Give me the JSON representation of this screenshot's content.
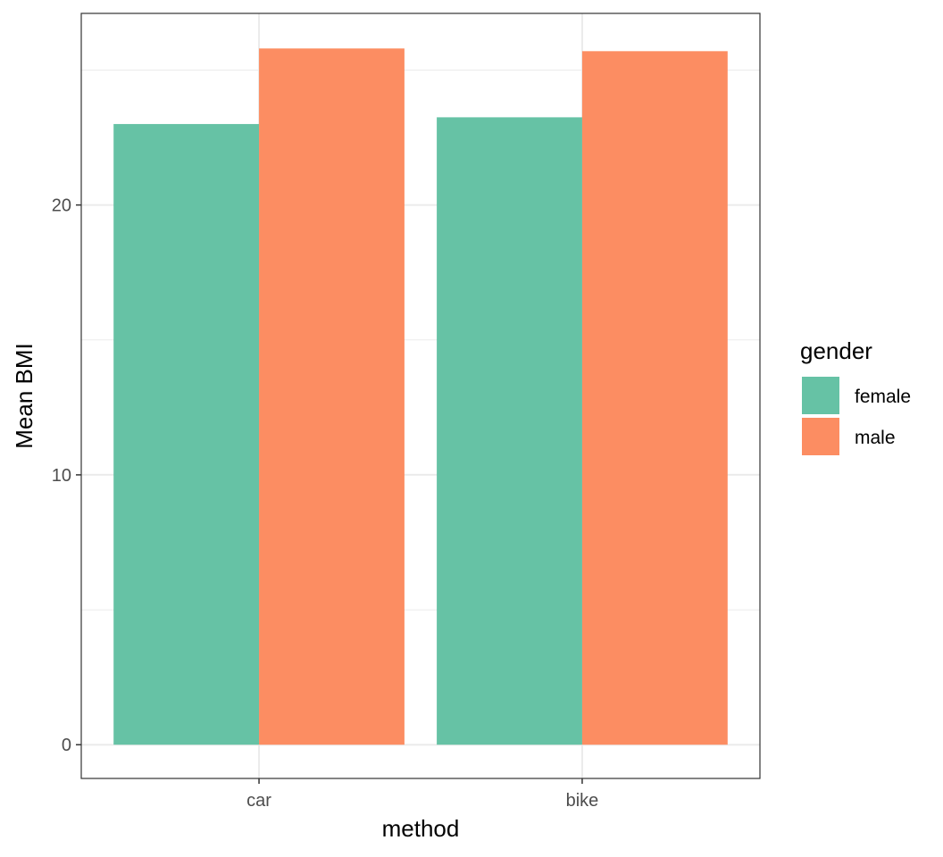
{
  "chart_data": {
    "type": "bar",
    "title": "",
    "xlabel": "method",
    "ylabel": "Mean BMI",
    "categories": [
      "car",
      "bike"
    ],
    "series": [
      {
        "name": "female",
        "values": [
          23.0,
          23.25
        ],
        "color": "#66c2a5"
      },
      {
        "name": "male",
        "values": [
          25.8,
          25.7
        ],
        "color": "#fc8d62"
      }
    ],
    "ylim": [
      0,
      27
    ],
    "yticks": [
      0,
      10,
      20
    ],
    "grid": true,
    "legend": {
      "title": "gender",
      "position": "right"
    }
  }
}
